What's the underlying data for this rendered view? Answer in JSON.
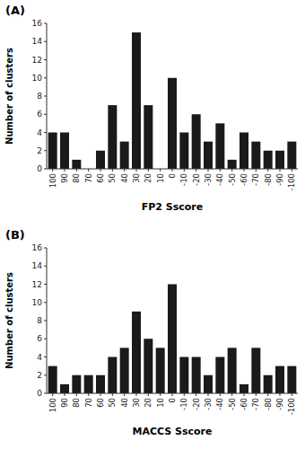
{
  "chart_data": [
    {
      "type": "bar",
      "title": "(A)",
      "xlabel": "FP2 Sscore",
      "ylabel": "Number of clusters",
      "categories": [
        "100",
        "90",
        "80",
        "70",
        "60",
        "50",
        "40",
        "30",
        "20",
        "10",
        "0",
        "-10",
        "-20",
        "-30",
        "-40",
        "-50",
        "-60",
        "-70",
        "-80",
        "-90",
        "-100"
      ],
      "values": [
        4,
        4,
        1,
        0,
        2,
        7,
        3,
        15,
        7,
        0,
        10,
        4,
        6,
        3,
        5,
        1,
        4,
        3,
        2,
        2,
        3
      ],
      "color": "#1a1a1a",
      "ylim": [
        0,
        16
      ],
      "yticks": [
        0,
        2,
        4,
        6,
        8,
        10,
        12,
        14,
        16
      ],
      "grid": false
    },
    {
      "type": "bar",
      "title": "(B)",
      "xlabel": "MACCS Sscore",
      "ylabel": "Number of clusters",
      "categories": [
        "100",
        "90",
        "80",
        "70",
        "60",
        "50",
        "40",
        "30",
        "20",
        "10",
        "0",
        "-10",
        "-20",
        "-30",
        "-40",
        "-50",
        "-60",
        "-70",
        "-80",
        "-90",
        "-100"
      ],
      "values": [
        3,
        1,
        2,
        2,
        2,
        4,
        5,
        9,
        6,
        5,
        12,
        4,
        4,
        2,
        4,
        5,
        1,
        5,
        2,
        3,
        3
      ],
      "color": "#1a1a1a",
      "ylim": [
        0,
        16
      ],
      "yticks": [
        0,
        2,
        4,
        6,
        8,
        10,
        12,
        14,
        16
      ],
      "grid": false
    }
  ]
}
